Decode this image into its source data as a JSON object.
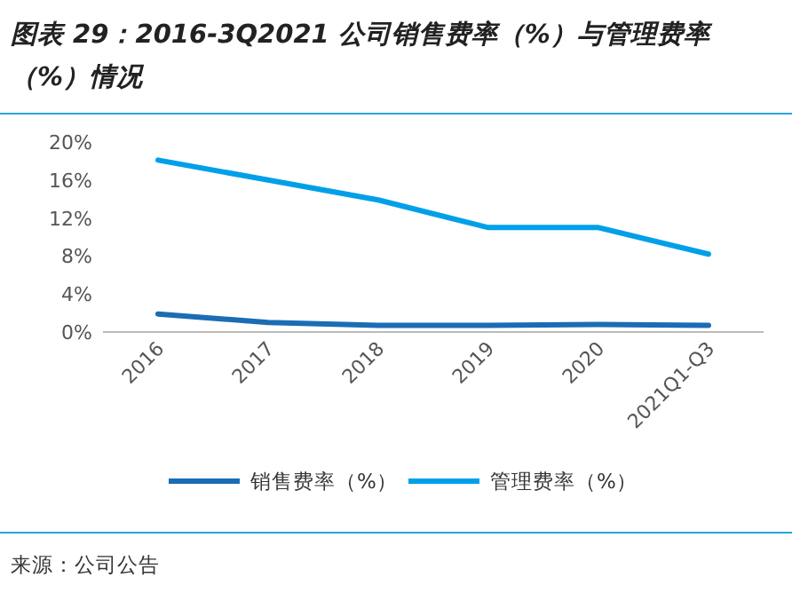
{
  "chart_data": {
    "type": "line",
    "title": "图表 29：2016-3Q2021 公司销售费率（%）与管理费率（%）情况",
    "categories": [
      "2016",
      "2017",
      "2018",
      "2019",
      "2020",
      "2021Q1-Q3"
    ],
    "series": [
      {
        "name": "销售费率（%）",
        "color": "#1b6cb5",
        "values": [
          1.9,
          1.0,
          0.7,
          0.7,
          0.8,
          0.7
        ]
      },
      {
        "name": "管理费率（%）",
        "color": "#00a0e9",
        "values": [
          18.1,
          16.0,
          13.9,
          11.0,
          11.0,
          8.2
        ]
      }
    ],
    "ylim": [
      0,
      20
    ],
    "yticks": [
      {
        "value": 0,
        "label": "0%"
      },
      {
        "value": 4,
        "label": "4%"
      },
      {
        "value": 8,
        "label": "8%"
      },
      {
        "value": 12,
        "label": "12%"
      },
      {
        "value": 16,
        "label": "16%"
      },
      {
        "value": 20,
        "label": "20%"
      }
    ],
    "grid": false,
    "legend": "bottom",
    "marker": "none",
    "line_style": "solid",
    "annotations": [
      "来源：公司公告"
    ]
  }
}
